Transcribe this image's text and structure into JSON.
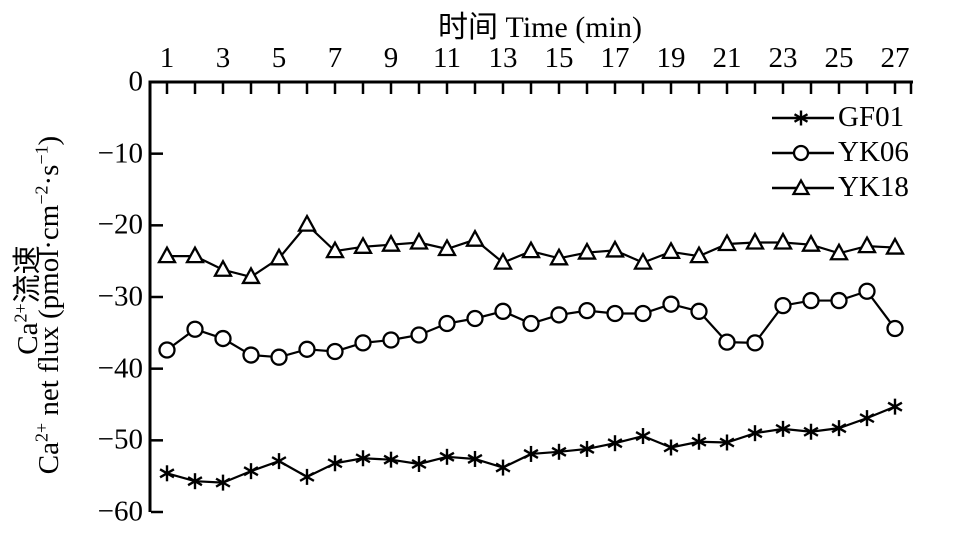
{
  "colors": {
    "ink": "#000000",
    "background": "#ffffff"
  },
  "y_axis": {
    "cn": {
      "base": "Ca",
      "sup": "2+",
      "rest": "流速"
    },
    "en": {
      "p1": "Ca",
      "s1": "2+",
      "p2": " net flux (pmol·cm",
      "s2": "−2",
      "p3": "·s",
      "s3": "−1",
      "p4": ")"
    },
    "tick_labels": [
      "0",
      "−10",
      "−20",
      "−30",
      "−40",
      "−50",
      "−60"
    ]
  },
  "chart_data": {
    "type": "line",
    "title": "时间 Time (min)",
    "xlabel": "时间 Time (min)",
    "ylabel": "Ca2+流速 / Ca2+ net flux (pmol·cm−2·s−1)",
    "x": [
      1,
      2,
      3,
      4,
      5,
      6,
      7,
      8,
      9,
      10,
      11,
      12,
      13,
      14,
      15,
      16,
      17,
      18,
      19,
      20,
      21,
      22,
      23,
      24,
      25,
      26,
      27
    ],
    "x_tick_labels": [
      "1",
      "3",
      "5",
      "7",
      "9",
      "11",
      "13",
      "15",
      "17",
      "19",
      "21",
      "23",
      "25",
      "27"
    ],
    "x_label_ticks": [
      1,
      3,
      5,
      7,
      9,
      11,
      13,
      15,
      17,
      19,
      21,
      23,
      25,
      27
    ],
    "xlim": [
      0.4,
      28
    ],
    "ylim": [
      -60,
      0
    ],
    "y_ticks": [
      0,
      -10,
      -20,
      -30,
      -40,
      -50,
      -60
    ],
    "grid": false,
    "legend_position": "top-right",
    "series": [
      {
        "name": "GF01",
        "marker": "asterisk",
        "values": [
          -54.6,
          -55.7,
          -55.9,
          -54.3,
          -52.9,
          -55.1,
          -53.2,
          -52.5,
          -52.7,
          -53.3,
          -52.3,
          -52.6,
          -53.8,
          -51.9,
          -51.6,
          -51.2,
          -50.4,
          -49.4,
          -51.0,
          -50.2,
          -50.3,
          -49.0,
          -48.4,
          -48.8,
          -48.3,
          -46.9,
          -45.3
        ]
      },
      {
        "name": "YK06",
        "marker": "circle",
        "values": [
          -37.4,
          -34.5,
          -35.8,
          -38.1,
          -38.4,
          -37.3,
          -37.6,
          -36.4,
          -36.0,
          -35.3,
          -33.7,
          -33.0,
          -32.0,
          -33.7,
          -32.5,
          -31.9,
          -32.3,
          -32.3,
          -31.0,
          -32.0,
          -36.3,
          -36.4,
          -31.2,
          -30.5,
          -30.5,
          -29.2,
          -34.4
        ]
      },
      {
        "name": "YK18",
        "marker": "triangle",
        "values": [
          -24.3,
          -24.3,
          -26.2,
          -27.2,
          -24.6,
          -19.9,
          -23.6,
          -23.0,
          -22.7,
          -22.4,
          -23.3,
          -22.0,
          -25.2,
          -23.6,
          -24.6,
          -23.8,
          -23.5,
          -25.2,
          -23.7,
          -24.3,
          -22.6,
          -22.4,
          -22.4,
          -22.7,
          -23.9,
          -22.9,
          -23.1
        ]
      }
    ]
  }
}
